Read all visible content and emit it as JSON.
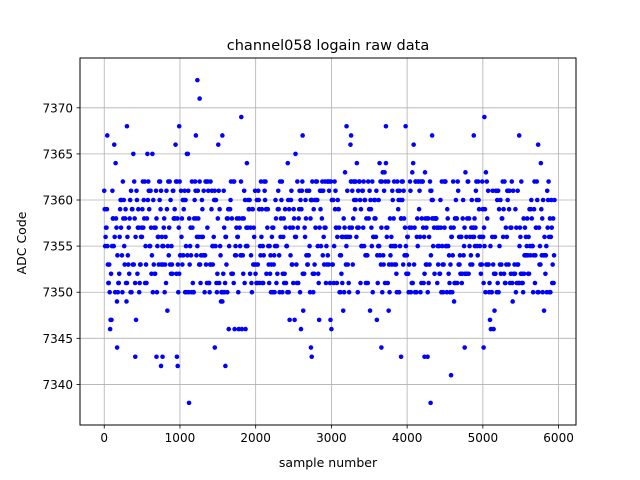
{
  "chart_data": {
    "type": "scatter",
    "title": "channel058 logain raw data",
    "xlabel": "sample number",
    "ylabel": "ADC Code",
    "xlim": [
      -320,
      6230
    ],
    "ylim": [
      7335.6,
      7375.4
    ],
    "xticks": [
      0,
      1000,
      2000,
      3000,
      4000,
      5000,
      6000
    ],
    "xtick_labels": [
      "0",
      "1000",
      "2000",
      "3000",
      "4000",
      "5000",
      "6000"
    ],
    "yticks": [
      7340,
      7345,
      7350,
      7355,
      7360,
      7365,
      7370
    ],
    "ytick_labels": [
      "7340",
      "7345",
      "7350",
      "7355",
      "7360",
      "7365",
      "7370"
    ],
    "grid": true,
    "marker_color": "#0000ff",
    "sample_count": 5950,
    "series": [
      {
        "baseline_band": {
          "x_range": [
            0,
            5950
          ],
          "y_range": [
            7346,
            7366
          ],
          "dense_range": [
            7350,
            7362
          ]
        },
        "outliers": [
          {
            "x": 1230,
            "y": 7373
          },
          {
            "x": 1260,
            "y": 7371
          },
          {
            "x": 1810,
            "y": 7369
          },
          {
            "x": 5020,
            "y": 7369
          },
          {
            "x": 300,
            "y": 7368
          },
          {
            "x": 990,
            "y": 7368
          },
          {
            "x": 3200,
            "y": 7368
          },
          {
            "x": 3720,
            "y": 7368
          },
          {
            "x": 3980,
            "y": 7368
          },
          {
            "x": 40,
            "y": 7367
          },
          {
            "x": 1210,
            "y": 7367
          },
          {
            "x": 1560,
            "y": 7367
          },
          {
            "x": 2620,
            "y": 7367
          },
          {
            "x": 3260,
            "y": 7367
          },
          {
            "x": 4330,
            "y": 7367
          },
          {
            "x": 4880,
            "y": 7367
          },
          {
            "x": 5480,
            "y": 7367
          },
          {
            "x": 170,
            "y": 7344
          },
          {
            "x": 1460,
            "y": 7344
          },
          {
            "x": 2730,
            "y": 7344
          },
          {
            "x": 3660,
            "y": 7344
          },
          {
            "x": 4760,
            "y": 7344
          },
          {
            "x": 5010,
            "y": 7344
          },
          {
            "x": 410,
            "y": 7343
          },
          {
            "x": 690,
            "y": 7343
          },
          {
            "x": 770,
            "y": 7343
          },
          {
            "x": 960,
            "y": 7343
          },
          {
            "x": 2740,
            "y": 7343
          },
          {
            "x": 3920,
            "y": 7343
          },
          {
            "x": 4230,
            "y": 7343
          },
          {
            "x": 4270,
            "y": 7343
          },
          {
            "x": 750,
            "y": 7342
          },
          {
            "x": 970,
            "y": 7342
          },
          {
            "x": 1600,
            "y": 7342
          },
          {
            "x": 4580,
            "y": 7341
          },
          {
            "x": 1120,
            "y": 7338
          },
          {
            "x": 4310,
            "y": 7338
          }
        ]
      }
    ]
  }
}
